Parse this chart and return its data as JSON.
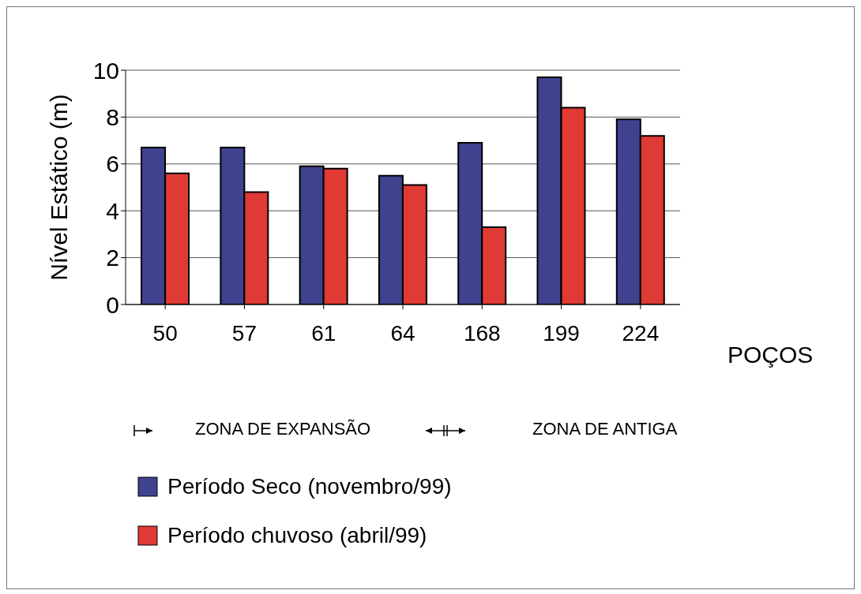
{
  "chart_data": {
    "type": "bar",
    "ylabel": "Nível Estático (m)",
    "xlabel": "POÇOS",
    "categories": [
      "50",
      "57",
      "61",
      "64",
      "168",
      "199",
      "224"
    ],
    "series": [
      {
        "name": "Período Seco (novembro/99)",
        "color": "#3f438f",
        "values": [
          6.7,
          6.7,
          5.9,
          5.5,
          6.9,
          9.7,
          7.9
        ]
      },
      {
        "name": "Período chuvoso (abril/99)",
        "color": "#e03a35",
        "values": [
          5.6,
          4.8,
          5.8,
          5.1,
          3.3,
          8.4,
          7.2
        ]
      }
    ],
    "ylim": [
      0,
      10
    ],
    "yticks": [
      0,
      2,
      4,
      6,
      8,
      10
    ],
    "grid": "y",
    "legend": "bottom",
    "annotations": [
      "ZONA DE EXPANSÃO",
      "ZONA DE ANTIGA"
    ]
  }
}
